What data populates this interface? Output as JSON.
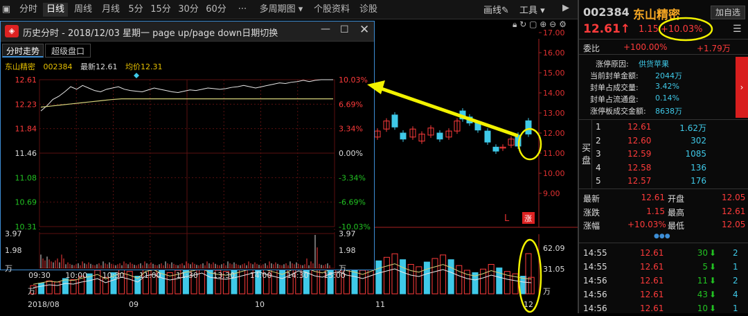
{
  "toolbar": {
    "tabs": [
      "分时",
      "日线",
      "周线",
      "月线",
      "5分",
      "15分",
      "30分",
      "60分",
      "···",
      "多周期图 ▾",
      "个股资料",
      "诊股"
    ],
    "active": "日线",
    "draw_line": "画线✎",
    "tools": "工具 ▾",
    "collapse": "▶"
  },
  "stock": {
    "code": "002384",
    "name": "东山精密",
    "add_btn": "加自选",
    "price": "12.61↑",
    "change": "1.15",
    "change_pct": "+10.03%",
    "weibi_label": "委比",
    "weibi_pct": "+100.00%",
    "weibi_vol": "+1.79万",
    "limit_reason_label": "涨停原因:",
    "limit_reason": "供货苹果",
    "stats": [
      {
        "label": "当前封单金额:",
        "value": "2044万"
      },
      {
        "label": "封单占成交量:",
        "value": "3.42%"
      },
      {
        "label": "封单占流通盘:",
        "value": "0.14%"
      },
      {
        "label": "涨停板成交金额:",
        "value": "8638万"
      }
    ],
    "bid_label": "买盘",
    "bids": [
      {
        "n": "1",
        "price": "12.61",
        "vol": "1.62万"
      },
      {
        "n": "2",
        "price": "12.60",
        "vol": "302"
      },
      {
        "n": "3",
        "price": "12.59",
        "vol": "1085"
      },
      {
        "n": "4",
        "price": "12.58",
        "vol": "136"
      },
      {
        "n": "5",
        "price": "12.57",
        "vol": "176"
      }
    ],
    "quote": [
      {
        "l1": "最新",
        "v1": "12.61",
        "l2": "开盘",
        "v2": "12.05"
      },
      {
        "l1": "涨跌",
        "v1": "1.15",
        "l2": "最高",
        "v2": "12.61"
      },
      {
        "l1": "涨幅",
        "v1": "+10.03%",
        "l2": "最低",
        "v2": "12.05"
      }
    ],
    "more": "●●●",
    "ticks": [
      {
        "t": "14:55",
        "p": "12.61",
        "v": "30",
        "n": "2"
      },
      {
        "t": "14:55",
        "p": "12.61",
        "v": "5",
        "n": "1"
      },
      {
        "t": "14:56",
        "p": "12.61",
        "v": "11",
        "n": "2"
      },
      {
        "t": "14:56",
        "p": "12.61",
        "v": "43",
        "n": "4"
      },
      {
        "t": "14:56",
        "p": "12.61",
        "v": "10",
        "n": "1"
      }
    ]
  },
  "history": {
    "title": "历史分时 - 2018/12/03 星期一 page up/page down日期切换",
    "tabs": [
      "分时走势",
      "超级盘口"
    ],
    "info_name": "东山精密",
    "info_code": "002384",
    "info_latest": "最新12.61",
    "info_avg": "均价12.31",
    "price_axis": [
      "12.61",
      "12.23",
      "11.84",
      "11.46",
      "11.08",
      "10.69",
      "10.31"
    ],
    "pct_axis": [
      "10.03%",
      "6.69%",
      "3.34%",
      "0.00%",
      "-3.34%",
      "-6.69%",
      "-10.03%"
    ],
    "vol_axis": [
      "3.97",
      "1.98",
      "万"
    ],
    "vol_axis_r": [
      "3.97",
      "1.98",
      "万"
    ],
    "time_axis": [
      "09:30",
      "10:00",
      "10:30",
      "11:00",
      "11:30",
      "13:30",
      "14:00",
      "14:30",
      "15:00"
    ]
  },
  "main": {
    "price_axis": [
      "17.00",
      "16.00",
      "15.00",
      "14.00",
      "13.00",
      "12.00",
      "11.00",
      "10.00",
      "9.00"
    ],
    "vol_axis": [
      "62.09",
      "31.05",
      "万"
    ],
    "left_vol_axis": [
      "万"
    ],
    "date_axis": [
      "2018/08",
      "09",
      "10",
      "11",
      "12"
    ],
    "marker_L": "L",
    "marker_zhang": "涨"
  },
  "colors": {
    "up": "#ff3b3b",
    "down": "#3fc9e8",
    "price_line": "#e8e8e8",
    "avg_line": "#d6d27a",
    "highlight": "#f2f200"
  }
}
